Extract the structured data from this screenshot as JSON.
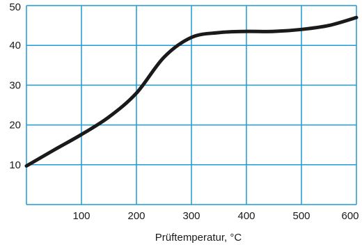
{
  "chart_data": {
    "type": "line",
    "title": "",
    "xlabel": "Prüftemperatur, °C",
    "ylabel": "",
    "xlim": [
      0,
      600
    ],
    "ylim": [
      0,
      50
    ],
    "x_ticks": [
      100,
      200,
      300,
      400,
      500,
      600
    ],
    "y_ticks": [
      10,
      20,
      30,
      40,
      50
    ],
    "grid": true,
    "grid_color": "#1e9ad6",
    "line_color": "#1a1a1a",
    "series": [
      {
        "x": [
          0,
          50,
          100,
          150,
          200,
          250,
          300,
          350,
          400,
          450,
          500,
          550,
          600
        ],
        "y": [
          9.7,
          13.7,
          17.6,
          22.0,
          28.0,
          37.0,
          42.0,
          43.2,
          43.5,
          43.5,
          44.0,
          45.0,
          47.0
        ]
      }
    ]
  }
}
